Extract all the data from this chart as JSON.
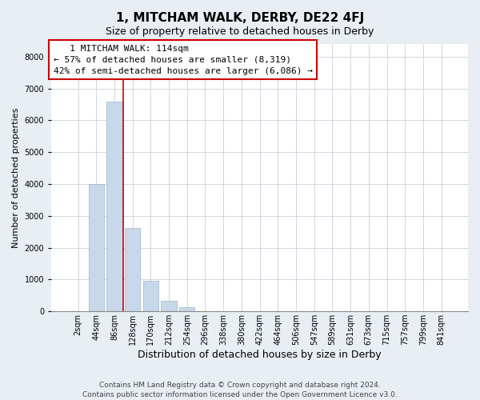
{
  "title": "1, MITCHAM WALK, DERBY, DE22 4FJ",
  "subtitle": "Size of property relative to detached houses in Derby",
  "xlabel": "Distribution of detached houses by size in Derby",
  "ylabel": "Number of detached properties",
  "bar_color": "#c8d8ea",
  "bar_edge_color": "#9ab4cc",
  "annotation_line_color": "#cc0000",
  "categories": [
    "2sqm",
    "44sqm",
    "86sqm",
    "128sqm",
    "170sqm",
    "212sqm",
    "254sqm",
    "296sqm",
    "338sqm",
    "380sqm",
    "422sqm",
    "464sqm",
    "506sqm",
    "547sqm",
    "589sqm",
    "631sqm",
    "673sqm",
    "715sqm",
    "757sqm",
    "799sqm",
    "841sqm"
  ],
  "values": [
    0,
    4000,
    6600,
    2620,
    960,
    320,
    130,
    0,
    0,
    0,
    0,
    0,
    0,
    0,
    0,
    0,
    0,
    0,
    0,
    0,
    0
  ],
  "property_label": "1 MITCHAM WALK: 114sqm",
  "pct_smaller": 57,
  "count_smaller": 8319,
  "pct_larger": 42,
  "count_larger": 6086,
  "ylim": [
    0,
    8400
  ],
  "yticks": [
    0,
    1000,
    2000,
    3000,
    4000,
    5000,
    6000,
    7000,
    8000
  ],
  "footer_line1": "Contains HM Land Registry data © Crown copyright and database right 2024.",
  "footer_line2": "Contains public sector information licensed under the Open Government Licence v3.0.",
  "background_color": "#e8eef4",
  "plot_background_color": "#ffffff",
  "grid_color": "#c8d0d8",
  "title_fontsize": 11,
  "subtitle_fontsize": 9,
  "xlabel_fontsize": 9,
  "ylabel_fontsize": 8,
  "tick_fontsize": 7,
  "annotation_fontsize": 8,
  "footer_fontsize": 6.5,
  "line_x_index": 2.5
}
